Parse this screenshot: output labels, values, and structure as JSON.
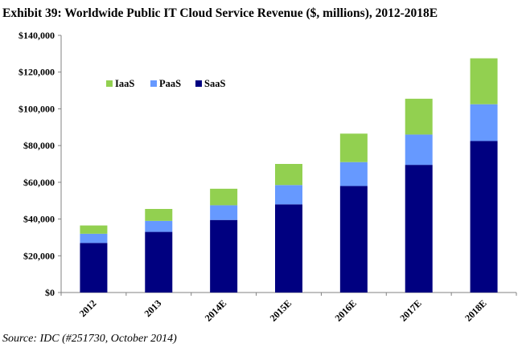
{
  "title": "Exhibit 39: Worldwide Public IT Cloud Service Revenue ($, millions), 2012-2018E",
  "source": "Source: IDC (#251730, October 2014)",
  "chart_data": {
    "type": "bar",
    "stacked": true,
    "categories": [
      "2012",
      "2013",
      "2014E",
      "2015E",
      "2016E",
      "2017E",
      "2018E"
    ],
    "series": [
      {
        "name": "SaaS",
        "color": "#000080",
        "values": [
          27000,
          33000,
          39500,
          48000,
          58000,
          69500,
          82500
        ]
      },
      {
        "name": "PaaS",
        "color": "#6699FF",
        "values": [
          5000,
          6000,
          8000,
          10500,
          13000,
          16500,
          20000
        ]
      },
      {
        "name": "IaaS",
        "color": "#92D050",
        "values": [
          4500,
          6500,
          9000,
          11500,
          15500,
          19500,
          25000
        ]
      }
    ],
    "ylim": [
      0,
      140000
    ],
    "yticks": [
      0,
      20000,
      40000,
      60000,
      80000,
      100000,
      120000,
      140000
    ],
    "ytick_labels": [
      "$0",
      "$20,000",
      "$40,000",
      "$60,000",
      "$80,000",
      "$100,000",
      "$120,000",
      "$140,000"
    ],
    "legend": {
      "placement": "top-left",
      "order": [
        "IaaS",
        "PaaS",
        "SaaS"
      ]
    },
    "grid": false,
    "xlabel": "",
    "ylabel": ""
  }
}
